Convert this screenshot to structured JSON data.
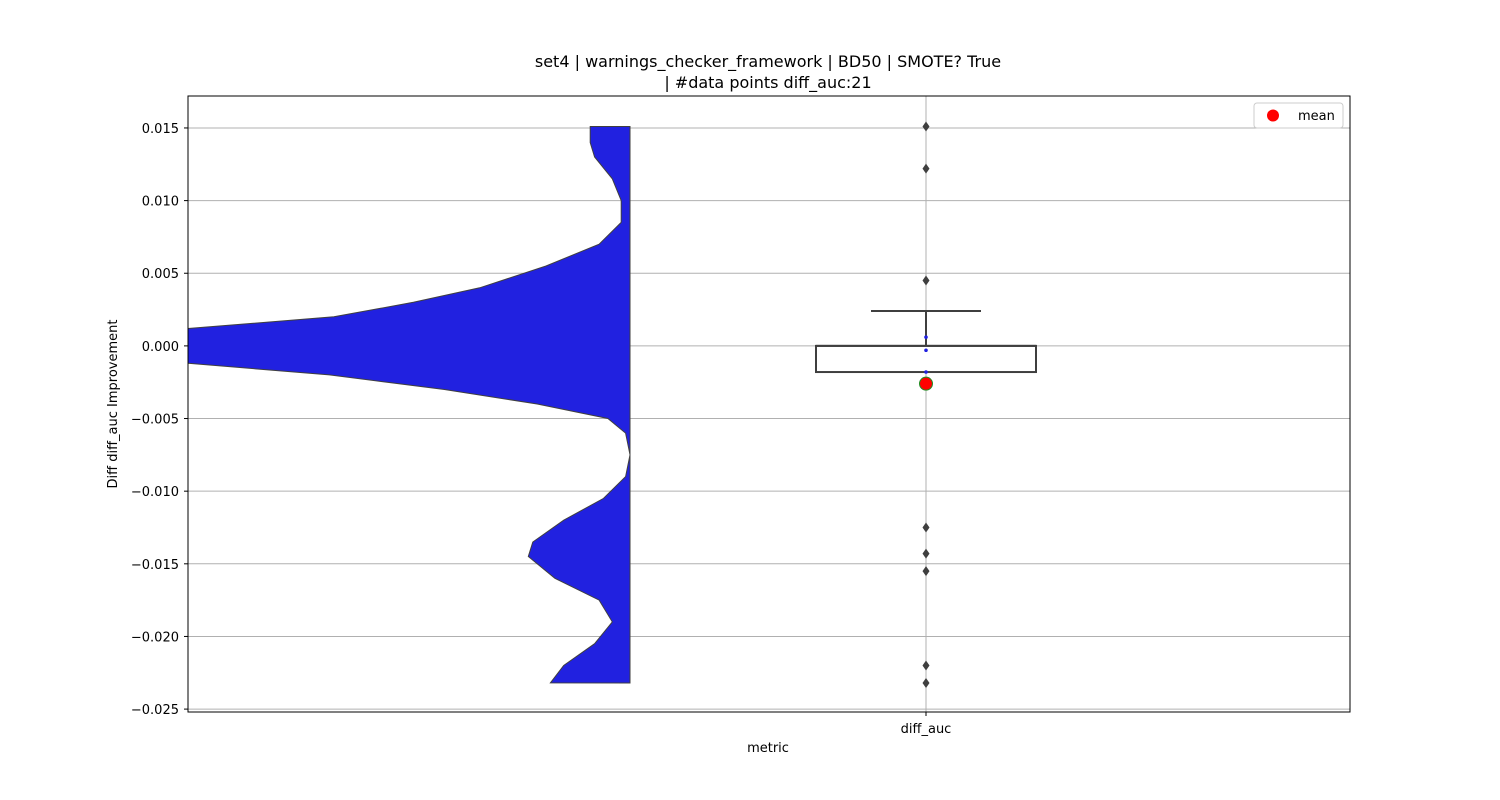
{
  "chart_data": {
    "type": "violin+box",
    "title_line1": "set4 | warnings_checker_framework | BD50 | SMOTE? True",
    "title_line2": "| #data points diff_auc:21",
    "xlabel": "metric",
    "ylabel": "Diff diff_auc Improvement",
    "categories": [
      "diff_auc"
    ],
    "ylim": [
      -0.0252,
      0.0172
    ],
    "yticks": [
      0.015,
      0.01,
      0.005,
      0.0,
      -0.005,
      -0.01,
      -0.015,
      -0.02,
      -0.025
    ],
    "ytick_labels": [
      "0.015",
      "0.010",
      "0.005",
      "0.000",
      "−0.005",
      "−0.010",
      "−0.015",
      "−0.020",
      "−0.025"
    ],
    "grid": true,
    "legend": {
      "placement": "top-right",
      "entries": [
        {
          "label": "mean",
          "color": "#ff0000"
        }
      ]
    },
    "violin": {
      "color": "#2121e0",
      "range": [
        -0.0232,
        0.0151
      ],
      "relative_density": [
        [
          0.0151,
          0.09
        ],
        [
          0.014,
          0.09
        ],
        [
          0.013,
          0.08
        ],
        [
          0.0115,
          0.04
        ],
        [
          0.01,
          0.02
        ],
        [
          0.0085,
          0.02
        ],
        [
          0.007,
          0.07
        ],
        [
          0.0055,
          0.19
        ],
        [
          0.004,
          0.34
        ],
        [
          0.003,
          0.49
        ],
        [
          0.002,
          0.67
        ],
        [
          0.0012,
          1.0
        ],
        [
          0.0,
          1.0
        ],
        [
          -0.0012,
          1.0
        ],
        [
          -0.002,
          0.68
        ],
        [
          -0.003,
          0.42
        ],
        [
          -0.004,
          0.21
        ],
        [
          -0.005,
          0.05
        ],
        [
          -0.006,
          0.01
        ],
        [
          -0.0075,
          0.0
        ],
        [
          -0.009,
          0.01
        ],
        [
          -0.0105,
          0.06
        ],
        [
          -0.012,
          0.15
        ],
        [
          -0.0135,
          0.22
        ],
        [
          -0.0145,
          0.23
        ],
        [
          -0.016,
          0.17
        ],
        [
          -0.0175,
          0.07
        ],
        [
          -0.019,
          0.04
        ],
        [
          -0.0205,
          0.08
        ],
        [
          -0.022,
          0.15
        ],
        [
          -0.0232,
          0.18
        ]
      ]
    },
    "box": {
      "q1": -0.0018,
      "median": 0.0,
      "q3": 0.0,
      "whisker_low": -0.0018,
      "whisker_high": 0.0024,
      "outliers": [
        0.0151,
        0.0122,
        0.0045,
        -0.0125,
        -0.0143,
        -0.0155,
        -0.022,
        -0.0232
      ]
    },
    "mean": -0.0026,
    "strip_points": [
      0.0006,
      -0.0003,
      -0.0018
    ]
  }
}
